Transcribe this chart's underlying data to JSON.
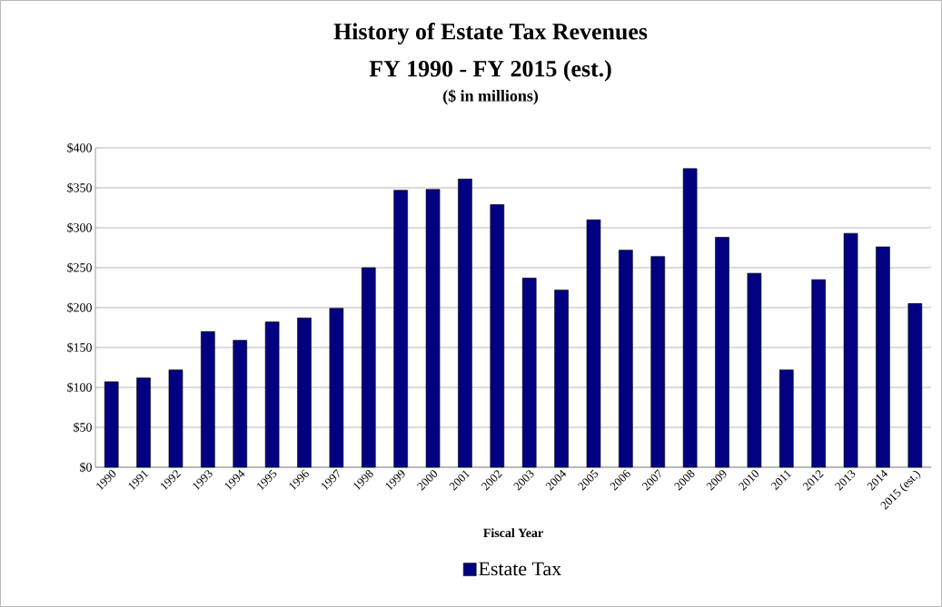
{
  "chart_data": {
    "type": "bar",
    "title": "History of Estate Tax Revenues",
    "subtitle": "FY 1990 - FY 2015 (est.)",
    "annotations": [
      "($ in millions)"
    ],
    "xlabel": "Fiscal Year",
    "categories": [
      "1990",
      "1991",
      "1992",
      "1993",
      "1994",
      "1995",
      "1996",
      "1997",
      "1998",
      "1999",
      "2000",
      "2001",
      "2002",
      "2003",
      "2004",
      "2005",
      "2006",
      "2007",
      "2008",
      "2009",
      "2010",
      "2011",
      "2012",
      "2013",
      "2014",
      "2015 (est.)"
    ],
    "series": [
      {
        "name": "Estate Tax",
        "color": "#000080",
        "values": [
          107,
          112,
          122,
          170,
          159,
          182,
          187,
          199,
          250,
          347,
          348,
          361,
          329,
          237,
          222,
          310,
          272,
          264,
          374,
          288,
          243,
          122,
          235,
          293,
          276,
          205
        ]
      }
    ],
    "ylim": [
      0,
      400
    ],
    "yticks": [
      {
        "value": 0,
        "label": "$0"
      },
      {
        "value": 50,
        "label": "$50"
      },
      {
        "value": 100,
        "label": "$100"
      },
      {
        "value": 150,
        "label": "$150"
      },
      {
        "value": 200,
        "label": "$200"
      },
      {
        "value": 250,
        "label": "$250"
      },
      {
        "value": 300,
        "label": "$300"
      },
      {
        "value": 350,
        "label": "$350"
      },
      {
        "value": 400,
        "label": "$400"
      }
    ],
    "grid": "y",
    "legend": "bottom"
  }
}
